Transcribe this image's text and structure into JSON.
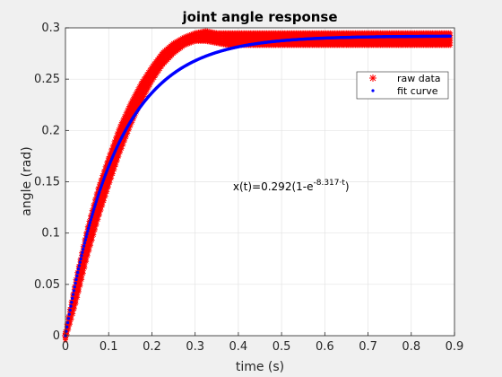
{
  "chart_data": {
    "type": "scatter",
    "title": "joint angle response",
    "xlabel": "time (s)",
    "ylabel": "angle (rad)",
    "xlim": [
      0,
      0.9
    ],
    "ylim": [
      0,
      0.3
    ],
    "xticks": [
      "0",
      "0.1",
      "0.2",
      "0.3",
      "0.4",
      "0.5",
      "0.6",
      "0.7",
      "0.8",
      "0.9"
    ],
    "yticks": [
      "0",
      "0.05",
      "0.1",
      "0.15",
      "0.2",
      "0.25",
      "0.3"
    ],
    "grid": true,
    "legend_position": "top-right",
    "annotation": {
      "prefix": "x(t)=0.292(1-e",
      "exponent": "-8.317·t",
      "suffix": ")",
      "x": 0.4,
      "y": 0.145
    },
    "series": [
      {
        "name": "raw data",
        "marker": "asterisk",
        "color": "#ff0000",
        "x": [
          0,
          0.025,
          0.05,
          0.075,
          0.1,
          0.125,
          0.15,
          0.175,
          0.2,
          0.225,
          0.25,
          0.275,
          0.3,
          0.325,
          0.35,
          0.375,
          0.4,
          0.45,
          0.5,
          0.55,
          0.6,
          0.65,
          0.7,
          0.75,
          0.8,
          0.85,
          0.89
        ],
        "values": [
          0,
          0.045,
          0.09,
          0.128,
          0.16,
          0.19,
          0.215,
          0.237,
          0.255,
          0.27,
          0.28,
          0.287,
          0.291,
          0.292,
          0.29,
          0.289,
          0.289,
          0.289,
          0.289,
          0.289,
          0.289,
          0.289,
          0.289,
          0.289,
          0.289,
          0.289,
          0.289
        ],
        "spread": [
          0.004,
          0.012,
          0.014,
          0.015,
          0.014,
          0.013,
          0.011,
          0.009,
          0.007,
          0.006,
          0.005,
          0.004,
          0.004,
          0.005,
          0.005,
          0.006,
          0.006,
          0.006,
          0.006,
          0.006,
          0.006,
          0.006,
          0.006,
          0.006,
          0.006,
          0.006,
          0.006
        ]
      },
      {
        "name": "fit curve",
        "marker": "point",
        "color": "#0000ff",
        "amplitude": 0.292,
        "rate": 8.317,
        "x_range": [
          0,
          0.89
        ]
      }
    ]
  }
}
